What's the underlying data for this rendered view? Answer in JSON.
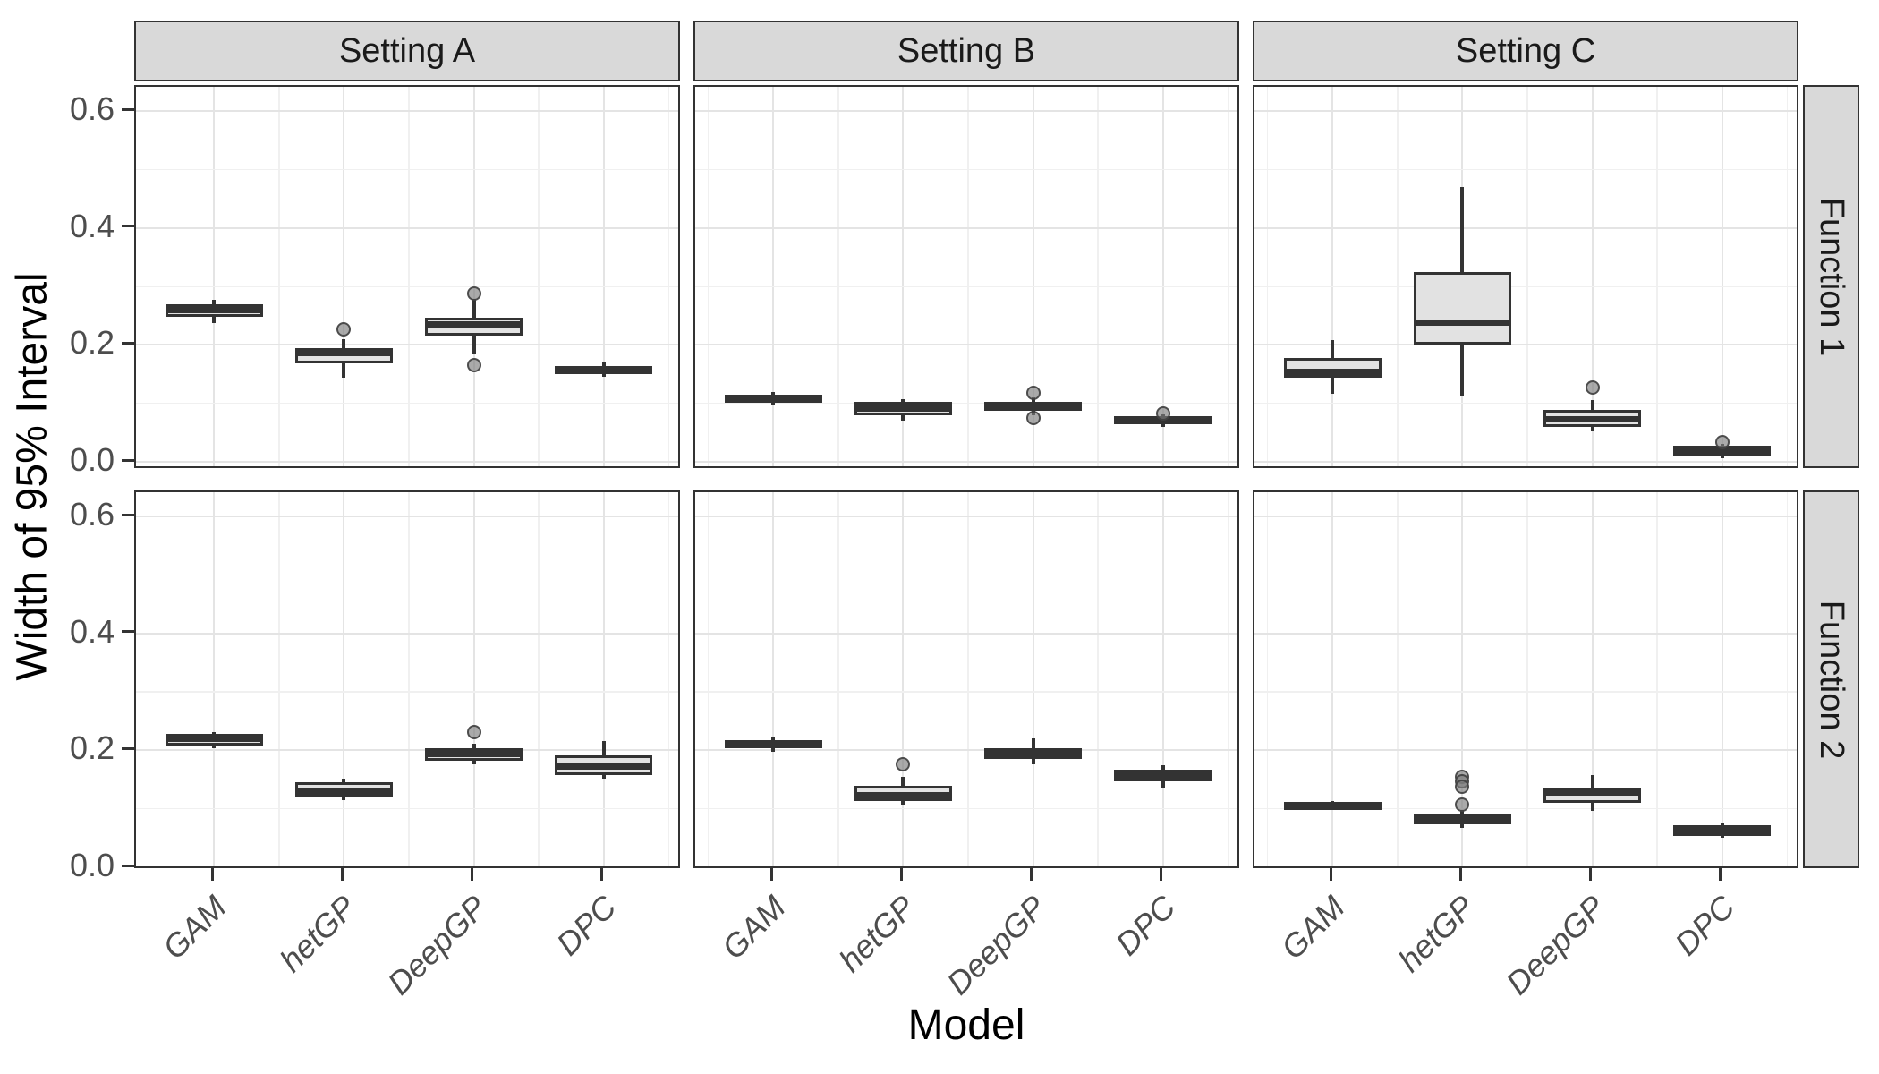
{
  "figure": {
    "x_axis_title": "Model",
    "y_axis_title": "Width of 95% Interval",
    "col_facets": [
      "Setting A",
      "Setting B",
      "Setting C"
    ],
    "row_facets": [
      "Function 1",
      "Function 2"
    ],
    "x_categories": [
      "GAM",
      "hetGP",
      "DeepGP",
      "DPC"
    ],
    "y_tick_labels": [
      "0.0",
      "0.2",
      "0.4",
      "0.6"
    ]
  },
  "colors": {
    "box_fill": "#e2e2e2",
    "box_stroke": "#333333",
    "strip_fill": "#d9d9d9",
    "panel_border": "#333333",
    "grid_major": "#e4e4e4",
    "grid_minor": "#f0f0f0",
    "tick_label": "#4d4d4d",
    "outlier_fill": "#7d7d7d"
  },
  "chart_data": {
    "type": "boxplot",
    "title": "",
    "xlabel": "Model",
    "ylabel": "Width of 95% Interval",
    "facet_cols": [
      "Setting A",
      "Setting B",
      "Setting C"
    ],
    "facet_rows": [
      "Function 1",
      "Function 2"
    ],
    "categories": [
      "GAM",
      "hetGP",
      "DeepGP",
      "DPC"
    ],
    "y_ticks": [
      0.0,
      0.2,
      0.4,
      0.6
    ],
    "y_minor_ticks": [
      0.1,
      0.3,
      0.5
    ],
    "ylim": [
      0,
      0.64
    ],
    "grid": true,
    "panels": [
      {
        "row": "Function 1",
        "col": "Setting A",
        "boxes": [
          {
            "model": "GAM",
            "low": 0.238,
            "q1": 0.248,
            "median": 0.259,
            "q3": 0.269,
            "high": 0.277,
            "outliers": []
          },
          {
            "model": "hetGP",
            "low": 0.144,
            "q1": 0.168,
            "median": 0.186,
            "q3": 0.195,
            "high": 0.21,
            "outliers": [
              0.227
            ]
          },
          {
            "model": "DeepGP",
            "low": 0.185,
            "q1": 0.216,
            "median": 0.235,
            "q3": 0.246,
            "high": 0.279,
            "outliers": [
              0.288,
              0.166
            ]
          },
          {
            "model": "DPC",
            "low": 0.145,
            "q1": 0.15,
            "median": 0.157,
            "q3": 0.164,
            "high": 0.17,
            "outliers": []
          }
        ]
      },
      {
        "row": "Function 1",
        "col": "Setting B",
        "boxes": [
          {
            "model": "GAM",
            "low": 0.097,
            "q1": 0.101,
            "median": 0.108,
            "q3": 0.115,
            "high": 0.119,
            "outliers": []
          },
          {
            "model": "hetGP",
            "low": 0.07,
            "q1": 0.08,
            "median": 0.091,
            "q3": 0.102,
            "high": 0.107,
            "outliers": []
          },
          {
            "model": "DeepGP",
            "low": 0.08,
            "q1": 0.088,
            "median": 0.096,
            "q3": 0.103,
            "high": 0.11,
            "outliers": [
              0.118,
              0.075
            ]
          },
          {
            "model": "DPC",
            "low": 0.06,
            "q1": 0.064,
            "median": 0.071,
            "q3": 0.078,
            "high": 0.081,
            "outliers": [
              0.083
            ]
          }
        ]
      },
      {
        "row": "Function 1",
        "col": "Setting C",
        "boxes": [
          {
            "model": "GAM",
            "low": 0.116,
            "q1": 0.144,
            "median": 0.154,
            "q3": 0.177,
            "high": 0.208,
            "outliers": []
          },
          {
            "model": "hetGP",
            "low": 0.113,
            "q1": 0.2,
            "median": 0.238,
            "q3": 0.325,
            "high": 0.47,
            "outliers": []
          },
          {
            "model": "DeepGP",
            "low": 0.052,
            "q1": 0.06,
            "median": 0.072,
            "q3": 0.089,
            "high": 0.105,
            "outliers": [
              0.127
            ]
          },
          {
            "model": "DPC",
            "low": 0.006,
            "q1": 0.011,
            "median": 0.019,
            "q3": 0.027,
            "high": 0.03,
            "outliers": [
              0.034
            ]
          }
        ]
      },
      {
        "row": "Function 2",
        "col": "Setting A",
        "boxes": [
          {
            "model": "GAM",
            "low": 0.204,
            "q1": 0.209,
            "median": 0.219,
            "q3": 0.228,
            "high": 0.232,
            "outliers": []
          },
          {
            "model": "hetGP",
            "low": 0.115,
            "q1": 0.12,
            "median": 0.13,
            "q3": 0.145,
            "high": 0.152,
            "outliers": []
          },
          {
            "model": "DeepGP",
            "low": 0.176,
            "q1": 0.182,
            "median": 0.193,
            "q3": 0.204,
            "high": 0.212,
            "outliers": [
              0.232
            ]
          },
          {
            "model": "DPC",
            "low": 0.151,
            "q1": 0.157,
            "median": 0.173,
            "q3": 0.192,
            "high": 0.216,
            "outliers": []
          }
        ]
      },
      {
        "row": "Function 2",
        "col": "Setting B",
        "boxes": [
          {
            "model": "GAM",
            "low": 0.197,
            "q1": 0.204,
            "median": 0.211,
            "q3": 0.218,
            "high": 0.223,
            "outliers": []
          },
          {
            "model": "hetGP",
            "low": 0.105,
            "q1": 0.114,
            "median": 0.124,
            "q3": 0.14,
            "high": 0.155,
            "outliers": [
              0.176
            ]
          },
          {
            "model": "DeepGP",
            "low": 0.176,
            "q1": 0.185,
            "median": 0.195,
            "q3": 0.204,
            "high": 0.221,
            "outliers": []
          },
          {
            "model": "DPC",
            "low": 0.136,
            "q1": 0.147,
            "median": 0.157,
            "q3": 0.167,
            "high": 0.174,
            "outliers": []
          }
        ]
      },
      {
        "row": "Function 2",
        "col": "Setting C",
        "boxes": [
          {
            "model": "GAM",
            "low": 0.098,
            "q1": 0.1,
            "median": 0.106,
            "q3": 0.111,
            "high": 0.113,
            "outliers": []
          },
          {
            "model": "hetGP",
            "low": 0.067,
            "q1": 0.074,
            "median": 0.082,
            "q3": 0.091,
            "high": 0.098,
            "outliers": [
              0.155,
              0.147,
              0.138,
              0.107
            ]
          },
          {
            "model": "DeepGP",
            "low": 0.097,
            "q1": 0.111,
            "median": 0.128,
            "q3": 0.137,
            "high": 0.158,
            "outliers": []
          },
          {
            "model": "DPC",
            "low": 0.05,
            "q1": 0.054,
            "median": 0.063,
            "q3": 0.072,
            "high": 0.075,
            "outliers": []
          }
        ]
      }
    ]
  }
}
